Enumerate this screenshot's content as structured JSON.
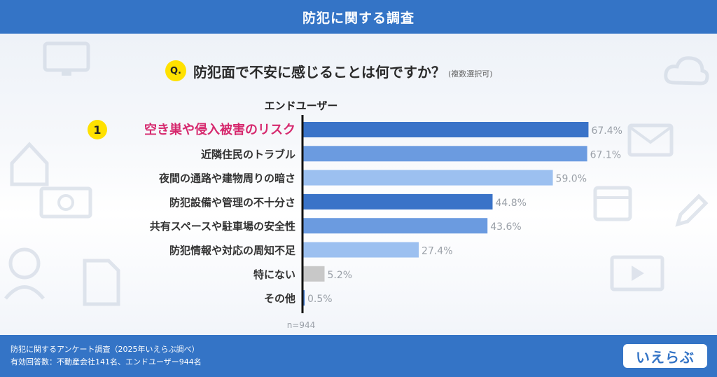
{
  "header": {
    "title": "防犯に関する調査"
  },
  "question": {
    "badge": "Q.",
    "text": "防犯面で不安に感じることは何ですか？",
    "note": "(複数選択可)"
  },
  "chart_data": {
    "type": "bar",
    "orientation": "horizontal",
    "group_label": "エンドユーザー",
    "rank_badge": "1",
    "categories": [
      "空き巣や侵入被害のリスク",
      "近隣住民のトラブル",
      "夜間の通路や建物周りの暗さ",
      "防犯設備や管理の不十分さ",
      "共有スペースや駐車場の安全性",
      "防犯情報や対応の周知不足",
      "特にない",
      "その他"
    ],
    "values": [
      67.4,
      67.1,
      59.0,
      44.8,
      43.6,
      27.4,
      5.2,
      0.5
    ],
    "value_labels": [
      "67.4%",
      "67.1%",
      "59.0%",
      "44.8%",
      "43.6%",
      "27.4%",
      "5.2%",
      "0.5%"
    ],
    "bar_colors": [
      "#3a73c8",
      "#6b9be0",
      "#9cc0f0",
      "#3a73c8",
      "#6b9be0",
      "#9cc0f0",
      "#c8c8c8",
      "#3a73c8"
    ],
    "highlight_color": "#d6296e",
    "xlim": [
      0,
      100
    ],
    "sample_size": "n=944",
    "grid": false
  },
  "footer": {
    "line1": "防犯に関するアンケート調査（2025年いえらぶ調べ）",
    "line2": "有効回答数：不動産会社141名、エンドユーザー944名",
    "logo": "いえらぶ"
  }
}
